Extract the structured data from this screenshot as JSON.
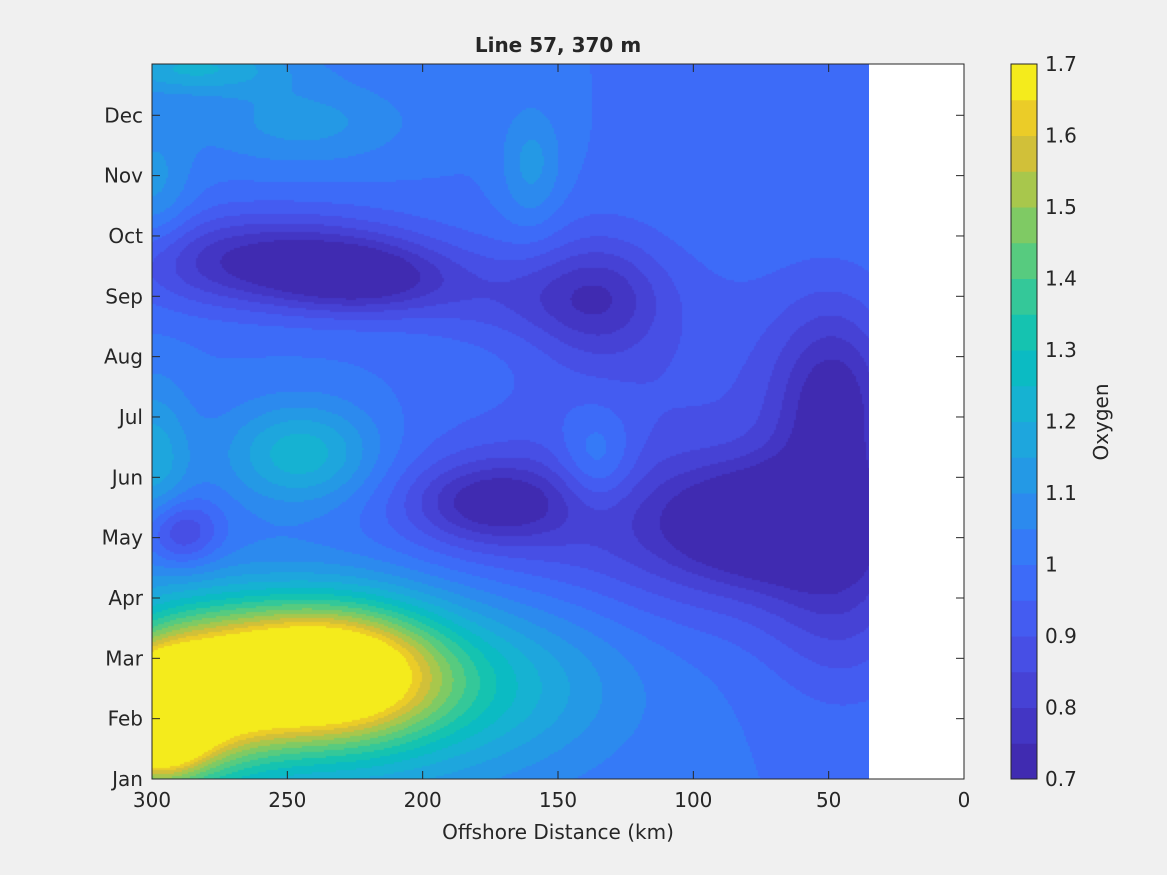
{
  "chart_data": {
    "type": "heatmap",
    "subtype": "filled-contour",
    "title": "Line 57, 370 m",
    "xlabel": "Offshore Distance (km)",
    "ylabel": "",
    "x_reversed": true,
    "xlim": [
      300,
      0
    ],
    "xticks": [
      "300",
      "250",
      "200",
      "150",
      "100",
      "50",
      "0"
    ],
    "yticks": [
      "Jan",
      "Feb",
      "Mar",
      "Apr",
      "May",
      "Jun",
      "Jul",
      "Aug",
      "Sep",
      "Oct",
      "Nov",
      "Dec"
    ],
    "data_extent_km": [
      300,
      35
    ],
    "colorbar": {
      "label": "Oxygen",
      "range": [
        0.7,
        1.7
      ],
      "ticks": [
        "0.7",
        "0.8",
        "0.9",
        "1",
        "1.1",
        "1.2",
        "1.3",
        "1.4",
        "1.5",
        "1.6",
        "1.7"
      ],
      "levels": [
        0.7,
        0.75,
        0.8,
        0.85,
        0.9,
        0.95,
        1.0,
        1.05,
        1.1,
        1.15,
        1.2,
        1.25,
        1.3,
        1.35,
        1.4,
        1.45,
        1.5,
        1.55,
        1.6,
        1.65,
        1.7
      ],
      "colormap": "parula"
    },
    "background": 1.0,
    "features": [
      {
        "x": 300,
        "y": 1.0,
        "value": 1.66,
        "sx": 12,
        "sy": 0.6
      },
      {
        "x": 292,
        "y": 1.3,
        "value": 1.52,
        "sx": 22,
        "sy": 1.0
      },
      {
        "x": 255,
        "y": 1.8,
        "value": 1.44,
        "sx": 26,
        "sy": 0.8
      },
      {
        "x": 225,
        "y": 1.8,
        "value": 1.44,
        "sx": 26,
        "sy": 0.8
      },
      {
        "x": 240,
        "y": 1.3,
        "value": 1.22,
        "sx": 55,
        "sy": 1.3
      },
      {
        "x": 175,
        "y": 1.6,
        "value": 1.14,
        "sx": 35,
        "sy": 0.9
      },
      {
        "x": 245,
        "y": 5.4,
        "value": 1.24,
        "sx": 20,
        "sy": 0.6
      },
      {
        "x": 300,
        "y": 5.3,
        "value": 1.18,
        "sx": 10,
        "sy": 0.9
      },
      {
        "x": 136,
        "y": 5.3,
        "value": 1.14,
        "sx": 10,
        "sy": 0.6
      },
      {
        "x": 245,
        "y": 10.9,
        "value": 1.12,
        "sx": 28,
        "sy": 0.5
      },
      {
        "x": 160,
        "y": 10.2,
        "value": 1.12,
        "sx": 8,
        "sy": 0.7
      },
      {
        "x": 300,
        "y": 9.8,
        "value": 1.12,
        "sx": 10,
        "sy": 0.8
      },
      {
        "x": 285,
        "y": 11.8,
        "value": 1.2,
        "sx": 25,
        "sy": 0.3
      },
      {
        "x": 255,
        "y": 8.6,
        "value": 0.72,
        "sx": 38,
        "sy": 0.55
      },
      {
        "x": 222,
        "y": 8.3,
        "value": 0.82,
        "sx": 22,
        "sy": 0.4
      },
      {
        "x": 135,
        "y": 8.0,
        "value": 0.84,
        "sx": 17,
        "sy": 0.8
      },
      {
        "x": 165,
        "y": 8.0,
        "value": 0.9,
        "sx": 30,
        "sy": 0.5
      },
      {
        "x": 175,
        "y": 4.6,
        "value": 0.82,
        "sx": 20,
        "sy": 0.45
      },
      {
        "x": 170,
        "y": 4.5,
        "value": 0.88,
        "sx": 35,
        "sy": 0.9
      },
      {
        "x": 290,
        "y": 4.1,
        "value": 0.8,
        "sx": 10,
        "sy": 0.4
      },
      {
        "x": 48,
        "y": 6.2,
        "value": 0.75,
        "sx": 16,
        "sy": 1.2
      },
      {
        "x": 70,
        "y": 4.3,
        "value": 0.76,
        "sx": 25,
        "sy": 0.6
      },
      {
        "x": 85,
        "y": 4.0,
        "value": 0.82,
        "sx": 40,
        "sy": 1.0
      },
      {
        "x": 45,
        "y": 3.0,
        "value": 0.86,
        "sx": 20,
        "sy": 1.2
      },
      {
        "x": 100,
        "y": 6.5,
        "value": 0.92,
        "sx": 50,
        "sy": 1.6
      }
    ]
  }
}
